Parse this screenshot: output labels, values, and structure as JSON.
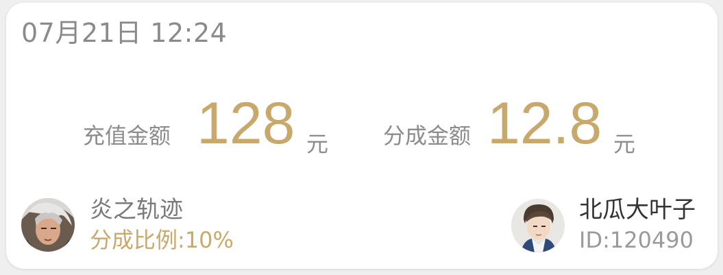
{
  "header": {
    "datetime": "07月21日 12:24"
  },
  "recharge": {
    "label": "充值金额",
    "value": "128",
    "unit": "元"
  },
  "share": {
    "label": "分成金额",
    "value": "12.8",
    "unit": "元"
  },
  "game": {
    "name": "炎之轨迹",
    "ratio": "分成比例:10%",
    "avatar_icon": "game-character-avatar"
  },
  "user": {
    "name": "北瓜大叶子",
    "id": "ID:120490",
    "avatar_icon": "user-avatar"
  },
  "colors": {
    "accent_gold": "#c8a96b",
    "text_gray": "#8a8a8a",
    "text_dark": "#333333"
  }
}
